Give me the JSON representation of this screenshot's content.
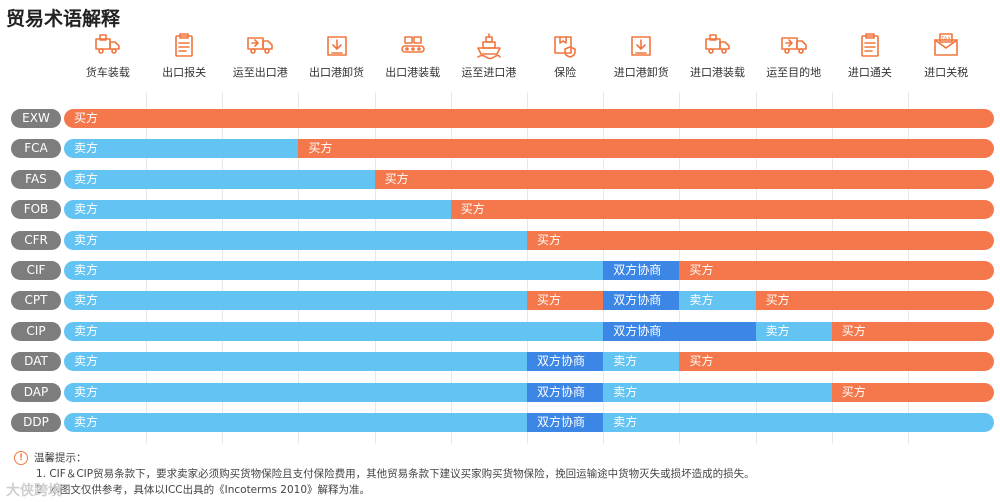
{
  "title": "贸易术语解释",
  "colors": {
    "seller": "#63c3f2",
    "buyer": "#f4784b",
    "negotiation": "#3c86e6",
    "badge": "#7d7d7d"
  },
  "stages": [
    {
      "label": "货车装载",
      "icon": "truck-loading-icon"
    },
    {
      "label": "出口报关",
      "icon": "clipboard-icon"
    },
    {
      "label": "运至出口港",
      "icon": "truck-icon"
    },
    {
      "label": "出口港卸货",
      "icon": "box-down-icon"
    },
    {
      "label": "出口港装载",
      "icon": "conveyor-icon"
    },
    {
      "label": "运至进口港",
      "icon": "ship-icon"
    },
    {
      "label": "保险",
      "icon": "insurance-box-icon"
    },
    {
      "label": "进口港卸货",
      "icon": "box-down-icon"
    },
    {
      "label": "进口港装载",
      "icon": "truck-loading-icon"
    },
    {
      "label": "运至目的地",
      "icon": "truck-icon"
    },
    {
      "label": "进口通关",
      "icon": "clipboard-icon"
    },
    {
      "label": "进口关税",
      "icon": "tax-envelope-icon"
    }
  ],
  "chart_data": {
    "type": "table",
    "title": "贸易术语解释",
    "legend_terms": {
      "seller": "卖方",
      "buyer": "买方",
      "negotiation": "双方协商"
    },
    "rows": [
      {
        "term": "EXW",
        "segments": [
          {
            "role": "buyer",
            "from": 0,
            "to": 12,
            "label": "买方"
          }
        ]
      },
      {
        "term": "FCA",
        "segments": [
          {
            "role": "seller",
            "from": 0,
            "to": 3,
            "label": "卖方"
          },
          {
            "role": "buyer",
            "from": 3,
            "to": 12,
            "label": "买方"
          }
        ]
      },
      {
        "term": "FAS",
        "segments": [
          {
            "role": "seller",
            "from": 0,
            "to": 4,
            "label": "卖方"
          },
          {
            "role": "buyer",
            "from": 4,
            "to": 12,
            "label": "买方"
          }
        ]
      },
      {
        "term": "FOB",
        "segments": [
          {
            "role": "seller",
            "from": 0,
            "to": 5,
            "label": "卖方"
          },
          {
            "role": "buyer",
            "from": 5,
            "to": 12,
            "label": "买方"
          }
        ]
      },
      {
        "term": "CFR",
        "segments": [
          {
            "role": "seller",
            "from": 0,
            "to": 6,
            "label": "卖方"
          },
          {
            "role": "buyer",
            "from": 6,
            "to": 12,
            "label": "买方"
          }
        ]
      },
      {
        "term": "CIF",
        "segments": [
          {
            "role": "seller",
            "from": 0,
            "to": 7,
            "label": "卖方"
          },
          {
            "role": "negotiation",
            "from": 7,
            "to": 8,
            "label": "双方协商"
          },
          {
            "role": "buyer",
            "from": 8,
            "to": 12,
            "label": "买方"
          }
        ]
      },
      {
        "term": "CPT",
        "segments": [
          {
            "role": "seller",
            "from": 0,
            "to": 6,
            "label": "卖方"
          },
          {
            "role": "buyer",
            "from": 6,
            "to": 7,
            "label": "买方"
          },
          {
            "role": "negotiation",
            "from": 7,
            "to": 8,
            "label": "双方协商"
          },
          {
            "role": "seller",
            "from": 8,
            "to": 9,
            "label": "卖方"
          },
          {
            "role": "buyer",
            "from": 9,
            "to": 12,
            "label": "买方"
          }
        ]
      },
      {
        "term": "CIP",
        "segments": [
          {
            "role": "seller",
            "from": 0,
            "to": 7,
            "label": "卖方"
          },
          {
            "role": "negotiation",
            "from": 7,
            "to": 9,
            "label": "双方协商"
          },
          {
            "role": "seller",
            "from": 9,
            "to": 10,
            "label": "卖方"
          },
          {
            "role": "buyer",
            "from": 10,
            "to": 12,
            "label": "买方"
          }
        ]
      },
      {
        "term": "DAT",
        "segments": [
          {
            "role": "seller",
            "from": 0,
            "to": 6,
            "label": "卖方"
          },
          {
            "role": "negotiation",
            "from": 6,
            "to": 7,
            "label": "双方协商"
          },
          {
            "role": "seller",
            "from": 7,
            "to": 8,
            "label": "卖方"
          },
          {
            "role": "buyer",
            "from": 8,
            "to": 12,
            "label": "买方"
          }
        ]
      },
      {
        "term": "DAP",
        "segments": [
          {
            "role": "seller",
            "from": 0,
            "to": 6,
            "label": "卖方"
          },
          {
            "role": "negotiation",
            "from": 6,
            "to": 7,
            "label": "双方协商"
          },
          {
            "role": "seller",
            "from": 7,
            "to": 10,
            "label": "卖方"
          },
          {
            "role": "buyer",
            "from": 10,
            "to": 12,
            "label": "买方"
          }
        ]
      },
      {
        "term": "DDP",
        "segments": [
          {
            "role": "seller",
            "from": 0,
            "to": 6,
            "label": "卖方"
          },
          {
            "role": "negotiation",
            "from": 6,
            "to": 7,
            "label": "双方协商"
          },
          {
            "role": "seller",
            "from": 7,
            "to": 12,
            "label": "卖方"
          }
        ]
      }
    ]
  },
  "notes": {
    "heading": "温馨提示：",
    "lines": [
      "1. CIF＆CIP贸易条款下，要求卖家必须购买货物保险且支付保险费用，其他贸易条款下建议买家购买货物保险，挽回运输途中货物灭失或损坏造成的损失。",
      "2. 本图文仅供参考，具体以ICC出具的《Incoterms 2010》解释为准。"
    ]
  },
  "watermark": "大侠跨境"
}
